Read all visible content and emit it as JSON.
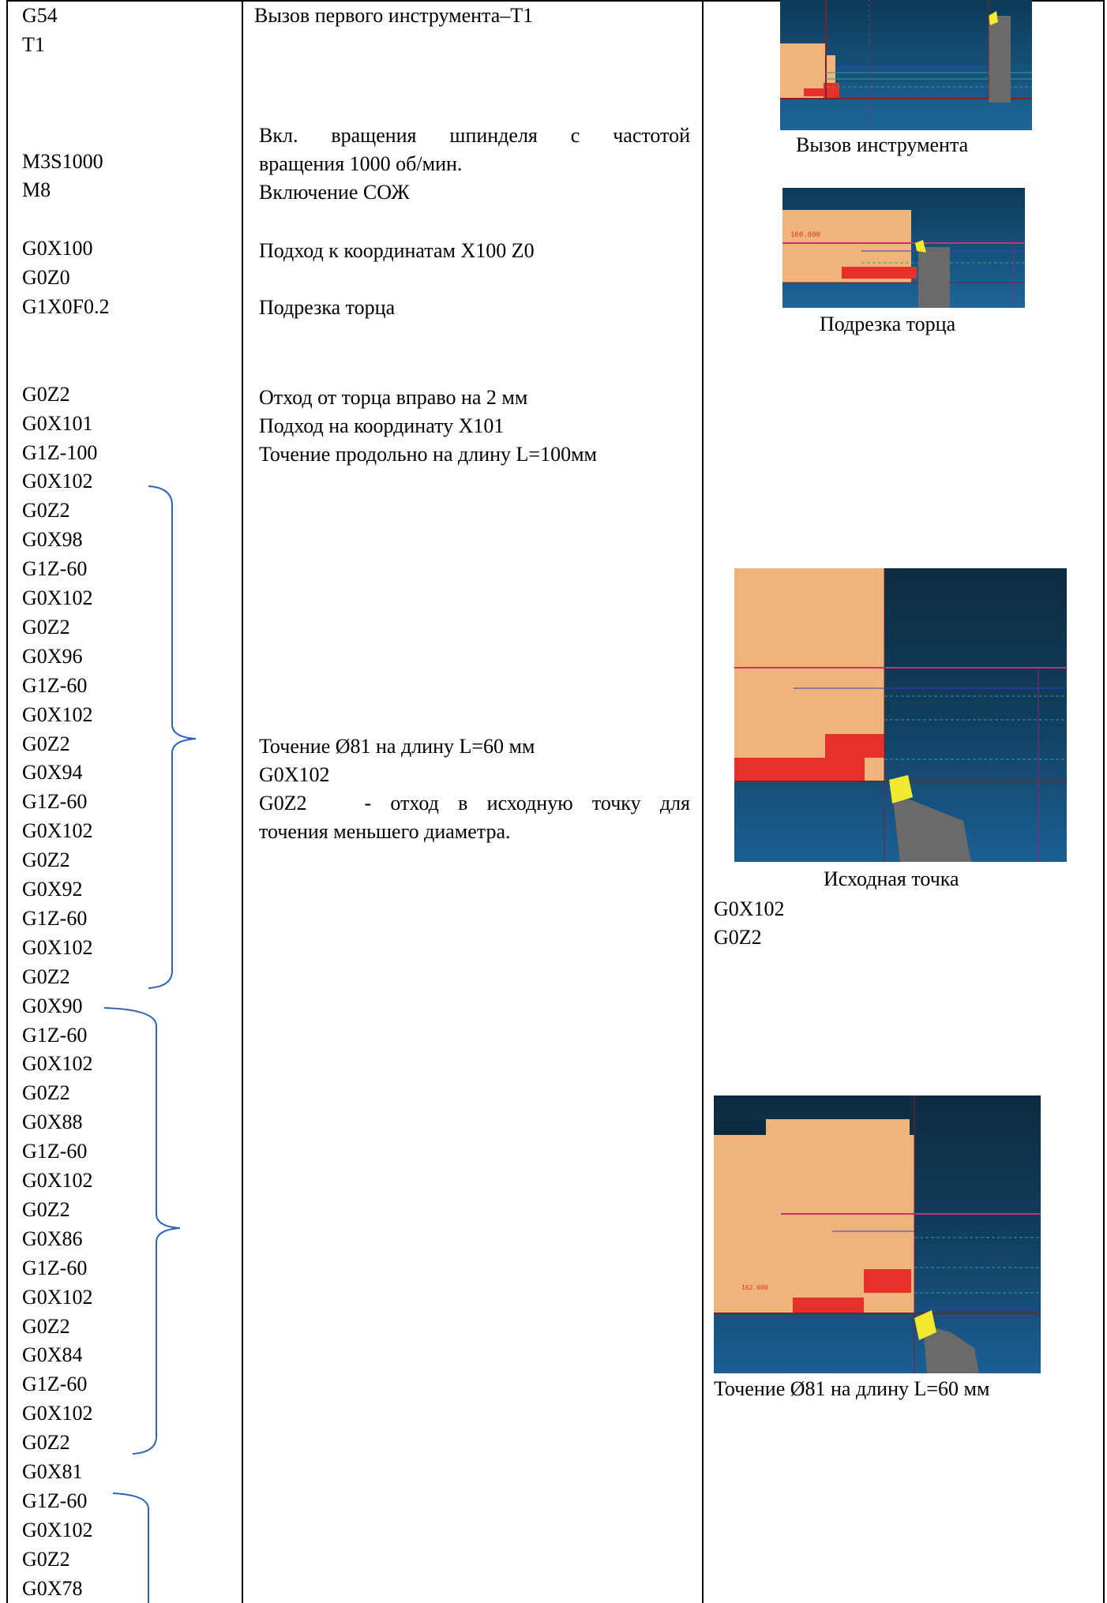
{
  "code_lines": [
    "G54",
    "T1",
    "",
    "",
    "",
    "M3S1000",
    "M8",
    "",
    "G0X100",
    "G0Z0",
    "G1X0F0.2",
    "",
    "",
    "G0Z2",
    "G0X101",
    "G1Z-100",
    "G0X102",
    "G0Z2",
    "G0X98",
    "G1Z-60",
    "G0X102",
    "G0Z2",
    "G0X96",
    "G1Z-60",
    "G0X102",
    "G0Z2",
    "G0X94",
    "G1Z-60",
    "G0X102",
    "G0Z2",
    "G0X92",
    "G1Z-60",
    "G0X102",
    "G0Z2",
    "G0X90",
    "G1Z-60",
    "G0X102",
    "G0Z2",
    "G0X88",
    "G1Z-60",
    "G0X102",
    "G0Z2",
    "G0X86",
    "G1Z-60",
    "G0X102",
    "G0Z2",
    "G0X84",
    "G1Z-60",
    "G0X102",
    "G0Z2",
    "G0X81",
    "G1Z-60",
    "G0X102",
    "G0Z2",
    "G0X78"
  ],
  "descriptions": {
    "tool_call": "Вызов первого инструмента–T1",
    "spindle_line1": "Вкл. вращения шпинделя с частотой",
    "spindle_line2": "вращения 1000 об/мин.",
    "coolant": "Включение СОЖ",
    "approach": "Подход к координатам X100 Z0",
    "facing": "Подрезка торца",
    "retract": "Отход от торца вправо на 2 мм",
    "approach_x101": "Подход на координату X101",
    "turn_length": "Точение продольно на длину L=100мм",
    "turn81": "Точение Ø81 на длину L=60 мм",
    "turn81_code1": "G0X102",
    "turn81_code2": "G0Z2   - отход в исходную точку для",
    "turn81_code3": "точения меньшего диаметра."
  },
  "captions": {
    "img1": "Вызов инструмента",
    "img2": "Подрезка торца",
    "img3": "Исходная точка",
    "img3_code1": "G0X102",
    "img3_code2": "G0Z2",
    "img4": "Точение Ø81 на длину L=60 мм"
  },
  "sim_labels": {
    "img2_dim": "160.000",
    "img4_dim": "162.000"
  },
  "colors": {
    "stock": "#EFB47A",
    "bg_dark": "#0D2F4A",
    "bg_mid": "#1A5A8A",
    "cut": "#E8302A",
    "insert": "#F2EA2E",
    "holder": "#6A6A6A",
    "bracket": "#2F62B3"
  }
}
